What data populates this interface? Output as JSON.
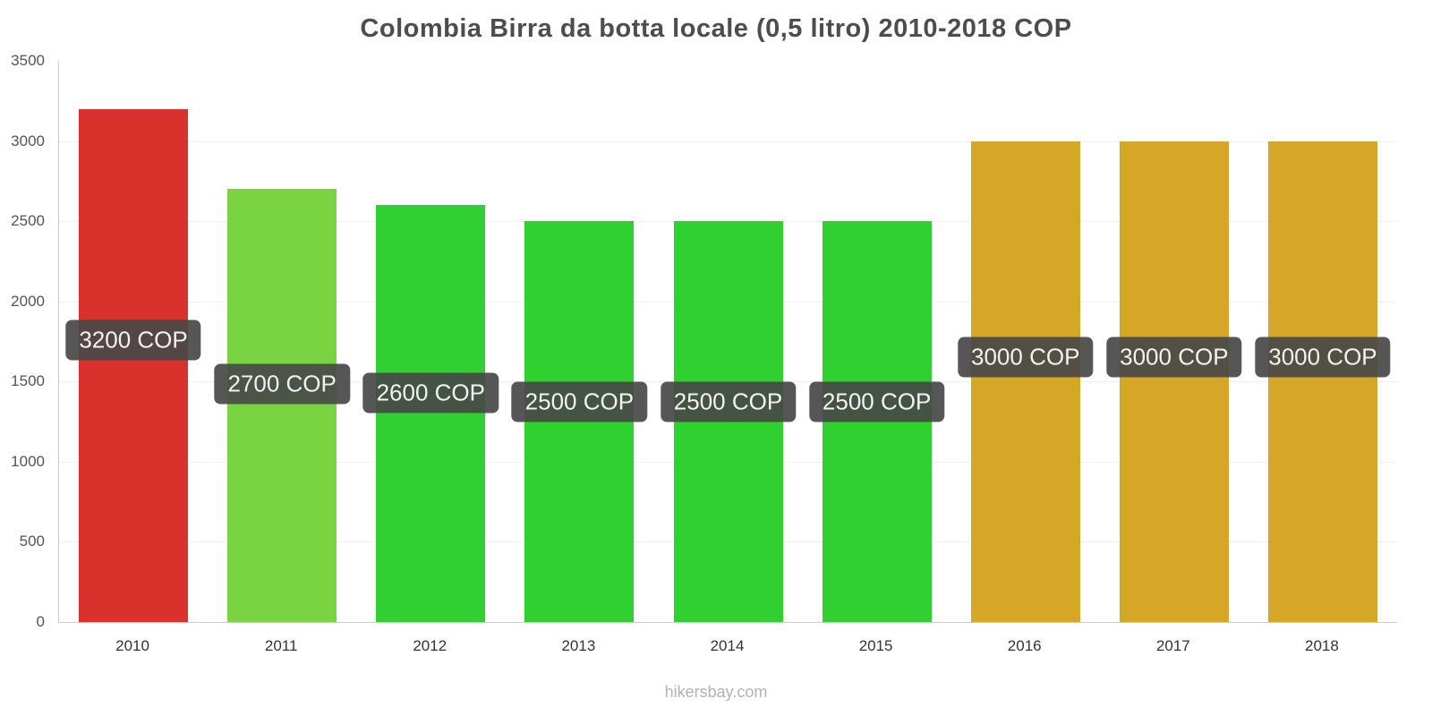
{
  "title": "Colombia Birra da botta locale (0,5 litro) 2010-2018 COP",
  "footer": "hikersbay.com",
  "colors": {
    "red_bar": "#d9312b",
    "light_green_bar": "#7ad340",
    "green_bar": "#2fd02f",
    "ochre_bar": "#d6a626",
    "label_background": "rgba(72,72,72,0.92)",
    "label_text": "#f2f2f2",
    "title_text": "#4d4d4d",
    "axis_line": "#cccccc"
  },
  "chart_data": {
    "type": "bar",
    "title": "Colombia Birra da botta locale (0,5 litro) 2010-2018 COP",
    "xlabel": "",
    "ylabel": "",
    "categories": [
      "2010",
      "2011",
      "2012",
      "2013",
      "2014",
      "2015",
      "2016",
      "2017",
      "2018"
    ],
    "values": [
      3200,
      2700,
      2600,
      2500,
      2500,
      2500,
      3000,
      3000,
      3000
    ],
    "value_labels": [
      "3200 COP",
      "2700 COP",
      "2600 COP",
      "2500 COP",
      "2500 COP",
      "2500 COP",
      "3000 COP",
      "3000 COP",
      "3000 COP"
    ],
    "bar_colors": [
      "#d9312b",
      "#7ad340",
      "#2fd02f",
      "#2fd02f",
      "#2fd02f",
      "#2fd02f",
      "#d6a626",
      "#d6a626",
      "#d6a626"
    ],
    "ylim": [
      0,
      3500
    ],
    "yticks": [
      0,
      500,
      1000,
      1500,
      2000,
      2500,
      3000,
      3500
    ],
    "grid": "horizontal-faint",
    "legend": "none",
    "currency": "COP"
  }
}
